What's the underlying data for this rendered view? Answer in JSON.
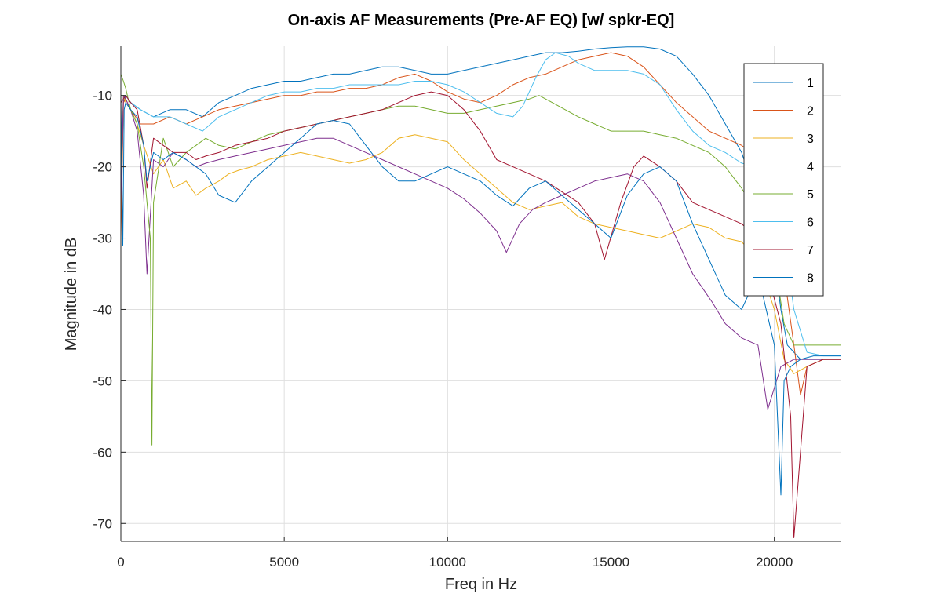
{
  "chart_data": {
    "type": "line",
    "title": "On-axis AF Measurements (Pre-AF EQ) [w/ spkr-EQ]",
    "xlabel": "Freq in Hz",
    "ylabel": "Magnitude in dB",
    "xlim": [
      0,
      22050
    ],
    "ylim": [
      -72.5,
      -3
    ],
    "xticks": [
      0,
      5000,
      10000,
      15000,
      20000
    ],
    "yticks": [
      -70,
      -60,
      -50,
      -40,
      -30,
      -20,
      -10
    ],
    "grid": true,
    "legend_position": "top-right",
    "series": [
      {
        "name": "1",
        "color": "#0072BD",
        "x": [
          0,
          80,
          150,
          300,
          600,
          1000,
          1500,
          2000,
          2500,
          3000,
          3500,
          4000,
          4500,
          5000,
          5500,
          6000,
          6500,
          7000,
          7500,
          8000,
          8500,
          9000,
          9500,
          10000,
          10500,
          11000,
          11500,
          12000,
          12500,
          13000,
          13500,
          14000,
          14500,
          15000,
          15500,
          16000,
          16500,
          17000,
          17500,
          18000,
          18500,
          19000,
          19500,
          20000,
          20200,
          20400,
          20600,
          20800,
          21000,
          21500,
          22050
        ],
        "values": [
          -28,
          -11,
          -10,
          -11,
          -12,
          -13,
          -12,
          -12,
          -13,
          -11,
          -10,
          -9,
          -8.5,
          -8,
          -8,
          -7.5,
          -7,
          -7,
          -6.5,
          -6,
          -6,
          -6.5,
          -7,
          -7,
          -6.5,
          -6,
          -5.5,
          -5,
          -4.5,
          -4,
          -4,
          -3.8,
          -3.5,
          -3.3,
          -3.2,
          -3.2,
          -3.5,
          -4.5,
          -7,
          -10,
          -14,
          -18,
          -25,
          -33,
          -40,
          -45,
          -46,
          -47,
          -47,
          -47,
          -47
        ]
      },
      {
        "name": "2",
        "color": "#D95319",
        "x": [
          0,
          80,
          150,
          300,
          600,
          1000,
          1500,
          2000,
          2500,
          3000,
          3500,
          4000,
          4500,
          5000,
          5500,
          6000,
          6500,
          7000,
          7500,
          8000,
          8500,
          9000,
          9500,
          10000,
          10500,
          11000,
          11500,
          12000,
          12500,
          13000,
          13500,
          14000,
          14500,
          15000,
          15500,
          16000,
          16500,
          17000,
          17500,
          18000,
          18500,
          19000,
          19500,
          20000,
          20300,
          20600,
          20800,
          21000,
          21500,
          22050
        ],
        "values": [
          -30,
          -11,
          -10.5,
          -12,
          -14,
          -14,
          -13,
          -14,
          -13,
          -12,
          -11.5,
          -11,
          -10.5,
          -10,
          -10,
          -9.5,
          -9.5,
          -9,
          -9,
          -8.5,
          -7.5,
          -7,
          -8,
          -9.5,
          -10.5,
          -11,
          -10,
          -8.5,
          -7.5,
          -7,
          -6,
          -5,
          -4.5,
          -4,
          -4.5,
          -6,
          -8.5,
          -11,
          -13,
          -15,
          -16,
          -17,
          -19,
          -25,
          -35,
          -45,
          -52,
          -48,
          -47,
          -47
        ]
      },
      {
        "name": "3",
        "color": "#EDB120",
        "x": [
          0,
          80,
          150,
          300,
          500,
          700,
          1000,
          1300,
          1600,
          2000,
          2300,
          2600,
          3000,
          3300,
          3600,
          4000,
          4500,
          5000,
          5500,
          6000,
          6500,
          7000,
          7500,
          8000,
          8500,
          9000,
          9500,
          10000,
          10500,
          11000,
          11500,
          12000,
          12500,
          13000,
          13500,
          14000,
          14500,
          15000,
          15500,
          16000,
          16500,
          17000,
          17500,
          18000,
          18500,
          19000,
          19500,
          20000,
          20300,
          20600,
          21000,
          21500,
          22050
        ],
        "values": [
          -20,
          -10,
          -11,
          -12,
          -14,
          -17,
          -21,
          -19,
          -23,
          -22,
          -24,
          -23,
          -22,
          -21,
          -20.5,
          -20,
          -19,
          -18.5,
          -18,
          -18.5,
          -19,
          -19.5,
          -19,
          -18,
          -16,
          -15.5,
          -16,
          -16.5,
          -19,
          -21,
          -23,
          -25,
          -26,
          -25.5,
          -25,
          -27,
          -28,
          -28.5,
          -29,
          -29.5,
          -30,
          -29,
          -28,
          -28.5,
          -30,
          -30.5,
          -33,
          -40,
          -47,
          -49,
          -48,
          -47,
          -47
        ]
      },
      {
        "name": "4",
        "color": "#7E2F8E",
        "x": [
          0,
          80,
          150,
          300,
          500,
          700,
          800,
          1000,
          1300,
          1600,
          2000,
          2300,
          2600,
          3000,
          3500,
          4000,
          4500,
          5000,
          5500,
          6000,
          6500,
          7000,
          7500,
          8000,
          8500,
          9000,
          9500,
          10000,
          10500,
          11000,
          11500,
          11800,
          12200,
          12600,
          13000,
          13500,
          14000,
          14500,
          15000,
          15500,
          16000,
          16500,
          17000,
          17500,
          17800,
          18100,
          18500,
          19000,
          19500,
          19800,
          20200,
          20600,
          21000,
          21500,
          22050
        ],
        "values": [
          -25,
          -10,
          -10.5,
          -12,
          -15,
          -24,
          -35,
          -19,
          -20,
          -18,
          -19,
          -20,
          -19.5,
          -19,
          -18.5,
          -18,
          -17.5,
          -17,
          -16.5,
          -16,
          -16,
          -17,
          -18,
          -19,
          -20,
          -21,
          -22,
          -23,
          -24.5,
          -26.5,
          -29,
          -32,
          -28,
          -26,
          -25,
          -24,
          -23,
          -22,
          -21.5,
          -21,
          -22,
          -25,
          -30,
          -35,
          -37,
          -39,
          -42,
          -44,
          -45,
          -54,
          -48,
          -47,
          -47,
          -47,
          -47
        ]
      },
      {
        "name": "5",
        "color": "#77AC30",
        "x": [
          0,
          80,
          150,
          300,
          500,
          700,
          900,
          950,
          1000,
          1300,
          1600,
          2000,
          2300,
          2600,
          3000,
          3500,
          4000,
          4500,
          5000,
          5500,
          6000,
          6500,
          7000,
          7500,
          8000,
          8500,
          9000,
          9500,
          10000,
          10500,
          11000,
          11500,
          12000,
          12500,
          12800,
          13200,
          13600,
          14000,
          14500,
          15000,
          15500,
          16000,
          16500,
          17000,
          17500,
          18000,
          18500,
          19000,
          19500,
          20000,
          20300,
          20600,
          21000,
          21500,
          22050
        ],
        "values": [
          -7,
          -8,
          -9,
          -12,
          -14,
          -20,
          -30,
          -59,
          -25,
          -16,
          -20,
          -18,
          -17,
          -16,
          -17,
          -17.5,
          -16.5,
          -15.5,
          -15,
          -14.5,
          -14,
          -13.5,
          -13,
          -12.5,
          -12,
          -11.5,
          -11.5,
          -12,
          -12.5,
          -12.5,
          -12,
          -11.5,
          -11,
          -10.5,
          -10,
          -11,
          -12,
          -13,
          -14,
          -15,
          -15,
          -15,
          -15.5,
          -16,
          -17,
          -18,
          -20,
          -23,
          -27,
          -33,
          -42,
          -45,
          -45,
          -45,
          -45
        ]
      },
      {
        "name": "6",
        "color": "#4DBEEE",
        "x": [
          0,
          80,
          150,
          300,
          600,
          1000,
          1500,
          2000,
          2500,
          3000,
          3500,
          4000,
          4500,
          5000,
          5500,
          6000,
          6500,
          7000,
          7500,
          8000,
          8500,
          9000,
          9500,
          10000,
          10500,
          11000,
          11500,
          12000,
          12300,
          12700,
          13000,
          13300,
          13700,
          14000,
          14500,
          15000,
          15500,
          16000,
          16500,
          17000,
          17500,
          18000,
          18500,
          19000,
          19500,
          20000,
          20300,
          20600,
          21000,
          21500,
          22050
        ],
        "values": [
          -11,
          -10.5,
          -10,
          -11,
          -12,
          -13,
          -13,
          -14,
          -15,
          -13,
          -12,
          -11,
          -10,
          -9.5,
          -9.5,
          -9,
          -9,
          -8.5,
          -8.5,
          -8.5,
          -8.5,
          -8,
          -8,
          -8.5,
          -9.5,
          -11,
          -12.5,
          -13,
          -11.5,
          -7.5,
          -5,
          -4,
          -4.5,
          -5.5,
          -6.5,
          -6.5,
          -6.5,
          -7,
          -8.5,
          -12,
          -15,
          -17,
          -18,
          -19.5,
          -20,
          -22,
          -30,
          -40,
          -46,
          -46.5,
          -46.5
        ]
      },
      {
        "name": "7",
        "color": "#A2142F",
        "x": [
          0,
          80,
          150,
          300,
          500,
          700,
          800,
          1000,
          1300,
          1600,
          2000,
          2300,
          2600,
          3000,
          3500,
          4000,
          4500,
          5000,
          5500,
          6000,
          6500,
          7000,
          7500,
          8000,
          8500,
          9000,
          9500,
          10000,
          10500,
          11000,
          11500,
          12000,
          12500,
          13000,
          13500,
          14000,
          14500,
          14800,
          15300,
          15700,
          16000,
          16500,
          17000,
          17500,
          18000,
          18500,
          19000,
          19500,
          19800,
          20200,
          20500,
          20600,
          21000,
          21500,
          22050
        ],
        "values": [
          -11,
          -10.5,
          -10,
          -11,
          -12,
          -17,
          -23,
          -16,
          -17,
          -18,
          -18,
          -19,
          -18.5,
          -18,
          -17,
          -16.5,
          -16,
          -15,
          -14.5,
          -14,
          -13.5,
          -13,
          -12.5,
          -12,
          -11,
          -10,
          -9.5,
          -10,
          -12,
          -15,
          -19,
          -20,
          -21,
          -22,
          -23.5,
          -25,
          -28,
          -33,
          -25,
          -20,
          -18.5,
          -20,
          -22,
          -25,
          -26,
          -27,
          -28,
          -30,
          -35,
          -42,
          -55,
          -72,
          -48,
          -47,
          -47
        ]
      },
      {
        "name": "8",
        "color": "#0072BD",
        "x": [
          0,
          60,
          100,
          150,
          300,
          500,
          700,
          800,
          1000,
          1300,
          1600,
          2000,
          2300,
          2600,
          3000,
          3500,
          4000,
          4500,
          5000,
          5500,
          6000,
          6500,
          7000,
          7500,
          8000,
          8500,
          9000,
          9500,
          10000,
          10500,
          11000,
          11500,
          12000,
          12500,
          13000,
          13500,
          14000,
          14500,
          15000,
          15500,
          16000,
          16500,
          17000,
          17500,
          18000,
          18500,
          19000,
          19500,
          20000,
          20200,
          20300,
          20500,
          20800,
          21200,
          21600,
          22050
        ],
        "values": [
          -10,
          -31,
          -12,
          -11,
          -12,
          -13,
          -17,
          -22,
          -18,
          -19,
          -18,
          -19,
          -20,
          -21,
          -24,
          -25,
          -22,
          -20,
          -18,
          -16,
          -14,
          -13.5,
          -14,
          -17,
          -20,
          -22,
          -22,
          -21,
          -20,
          -21,
          -22,
          -24,
          -25.5,
          -23,
          -22,
          -24,
          -26,
          -28,
          -30,
          -24,
          -21,
          -20,
          -22,
          -28,
          -33,
          -38,
          -40,
          -35,
          -45,
          -66,
          -50,
          -48,
          -47,
          -46.5,
          -46.5,
          -46.5
        ]
      }
    ]
  }
}
